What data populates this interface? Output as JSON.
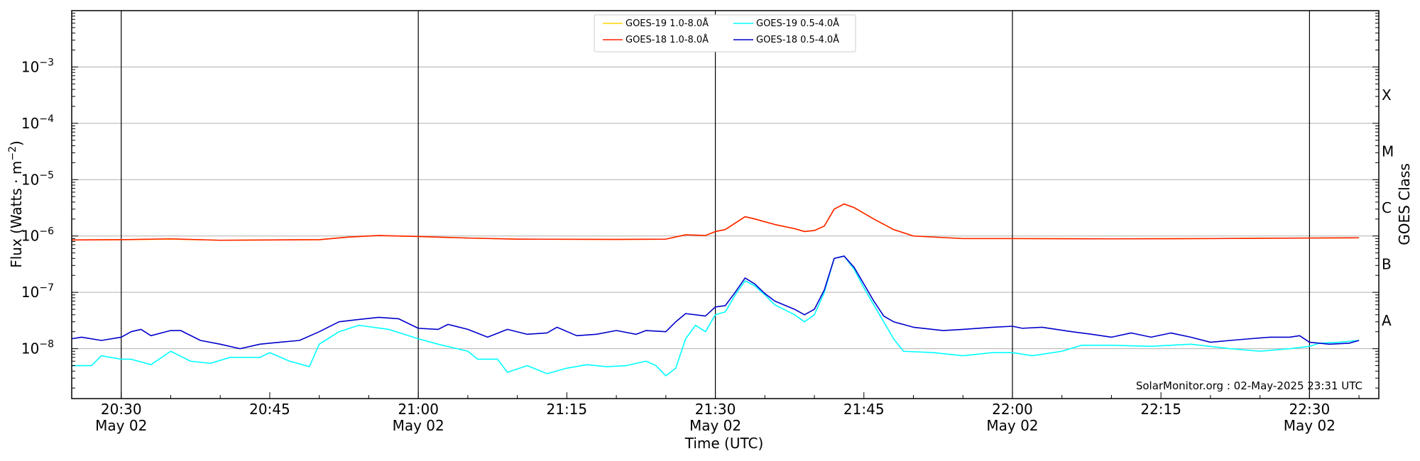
{
  "chart_data": {
    "type": "line",
    "title": "",
    "xlabel": "Time (UTC)",
    "ylabel": "Flux (Watts · m⁻²)",
    "ylabel_right": "GOES Class",
    "yscale": "log",
    "ylim": [
      1.3e-09,
      0.01
    ],
    "xlim": [
      "20:25",
      "22:37"
    ],
    "grid": "horizontal at decades",
    "legend_position": "top-center",
    "credit": "SolarMonitor.org : 02-May-2025 23:31 UTC",
    "x_ticks": [
      {
        "t": "20:30",
        "label": "20:30",
        "date": "May 02"
      },
      {
        "t": "20:45",
        "label": "20:45",
        "date": ""
      },
      {
        "t": "21:00",
        "label": "21:00",
        "date": "May 02"
      },
      {
        "t": "21:15",
        "label": "21:15",
        "date": ""
      },
      {
        "t": "21:30",
        "label": "21:30",
        "date": "May 02"
      },
      {
        "t": "21:45",
        "label": "21:45",
        "date": ""
      },
      {
        "t": "22:00",
        "label": "22:00",
        "date": "May 02"
      },
      {
        "t": "22:15",
        "label": "22:15",
        "date": ""
      },
      {
        "t": "22:30",
        "label": "22:30",
        "date": "May 02"
      }
    ],
    "y_ticks": [
      {
        "v": 1e-08,
        "base": "10",
        "exp": "−8"
      },
      {
        "v": 1e-07,
        "base": "10",
        "exp": "−7"
      },
      {
        "v": 1e-06,
        "base": "10",
        "exp": "−6"
      },
      {
        "v": 1e-05,
        "base": "10",
        "exp": "−5"
      },
      {
        "v": 0.0001,
        "base": "10",
        "exp": "−4"
      },
      {
        "v": 0.001,
        "base": "10",
        "exp": "−3"
      }
    ],
    "class_labels": [
      {
        "label": "X",
        "v": 0.000316
      },
      {
        "label": "M",
        "v": 3.16e-05
      },
      {
        "label": "C",
        "v": 3.16e-06
      },
      {
        "label": "B",
        "v": 3.16e-07
      },
      {
        "label": "A",
        "v": 3.16e-08
      }
    ],
    "vlines": [
      "20:30",
      "21:00",
      "21:30",
      "22:00",
      "22:30"
    ],
    "series": [
      {
        "name": "GOES-19 1.0-8.0Å",
        "color": "#FFD700",
        "points": [
          [
            "20:25",
            8.5e-07
          ],
          [
            "20:30",
            8.6e-07
          ],
          [
            "20:35",
            8.8e-07
          ],
          [
            "20:40",
            8.4e-07
          ],
          [
            "20:45",
            8.5e-07
          ],
          [
            "20:50",
            8.6e-07
          ],
          [
            "20:53",
            9.6e-07
          ],
          [
            "20:56",
            1.02e-06
          ],
          [
            "21:00",
            9.8e-07
          ],
          [
            "21:05",
            9.2e-07
          ],
          [
            "21:10",
            8.8e-07
          ],
          [
            "21:20",
            8.7e-07
          ],
          [
            "21:25",
            8.8e-07
          ],
          [
            "21:27",
            1.05e-06
          ],
          [
            "21:29",
            1.02e-06
          ],
          [
            "21:30",
            1.2e-06
          ],
          [
            "21:31",
            1.3e-06
          ],
          [
            "21:33",
            2.2e-06
          ],
          [
            "21:34",
            2e-06
          ],
          [
            "21:36",
            1.6e-06
          ],
          [
            "21:38",
            1.35e-06
          ],
          [
            "21:39",
            1.2e-06
          ],
          [
            "21:40",
            1.25e-06
          ],
          [
            "21:41",
            1.5e-06
          ],
          [
            "21:42",
            3e-06
          ],
          [
            "21:43",
            3.7e-06
          ],
          [
            "21:44",
            3.2e-06
          ],
          [
            "21:46",
            2e-06
          ],
          [
            "21:48",
            1.3e-06
          ],
          [
            "21:50",
            1e-06
          ],
          [
            "21:55",
            9e-07
          ],
          [
            "22:00",
            9e-07
          ],
          [
            "22:10",
            8.9e-07
          ],
          [
            "22:20",
            9e-07
          ],
          [
            "22:30",
            9.2e-07
          ],
          [
            "22:35",
            9.3e-07
          ]
        ]
      },
      {
        "name": "GOES-18 1.0-8.0Å",
        "color": "#FF2000",
        "points": [
          [
            "20:25",
            8.5e-07
          ],
          [
            "20:30",
            8.6e-07
          ],
          [
            "20:35",
            8.9e-07
          ],
          [
            "20:40",
            8.4e-07
          ],
          [
            "20:45",
            8.5e-07
          ],
          [
            "20:50",
            8.6e-07
          ],
          [
            "20:53",
            9.6e-07
          ],
          [
            "20:56",
            1.02e-06
          ],
          [
            "21:00",
            9.8e-07
          ],
          [
            "21:05",
            9.2e-07
          ],
          [
            "21:10",
            8.8e-07
          ],
          [
            "21:20",
            8.7e-07
          ],
          [
            "21:25",
            8.8e-07
          ],
          [
            "21:27",
            1.05e-06
          ],
          [
            "21:29",
            1.02e-06
          ],
          [
            "21:30",
            1.2e-06
          ],
          [
            "21:31",
            1.3e-06
          ],
          [
            "21:33",
            2.2e-06
          ],
          [
            "21:34",
            2e-06
          ],
          [
            "21:36",
            1.6e-06
          ],
          [
            "21:38",
            1.35e-06
          ],
          [
            "21:39",
            1.2e-06
          ],
          [
            "21:40",
            1.25e-06
          ],
          [
            "21:41",
            1.5e-06
          ],
          [
            "21:42",
            3e-06
          ],
          [
            "21:43",
            3.7e-06
          ],
          [
            "21:44",
            3.2e-06
          ],
          [
            "21:46",
            2e-06
          ],
          [
            "21:48",
            1.3e-06
          ],
          [
            "21:50",
            1e-06
          ],
          [
            "21:55",
            9e-07
          ],
          [
            "22:00",
            9e-07
          ],
          [
            "22:10",
            8.9e-07
          ],
          [
            "22:20",
            9e-07
          ],
          [
            "22:30",
            9.2e-07
          ],
          [
            "22:35",
            9.3e-07
          ]
        ]
      },
      {
        "name": "GOES-19 0.5-4.0Å",
        "color": "#00FFFF",
        "points": [
          [
            "20:25",
            5e-09
          ],
          [
            "20:27",
            5e-09
          ],
          [
            "20:28",
            7.5e-09
          ],
          [
            "20:30",
            6.5e-09
          ],
          [
            "20:31",
            6.5e-09
          ],
          [
            "20:33",
            5.2e-09
          ],
          [
            "20:35",
            9e-09
          ],
          [
            "20:37",
            6e-09
          ],
          [
            "20:39",
            5.5e-09
          ],
          [
            "20:41",
            7e-09
          ],
          [
            "20:44",
            7e-09
          ],
          [
            "20:45",
            8.5e-09
          ],
          [
            "20:47",
            6e-09
          ],
          [
            "20:49",
            4.8e-09
          ],
          [
            "20:50",
            1.2e-08
          ],
          [
            "20:52",
            2e-08
          ],
          [
            "20:54",
            2.6e-08
          ],
          [
            "20:57",
            2.2e-08
          ],
          [
            "21:00",
            1.5e-08
          ],
          [
            "21:02",
            1.2e-08
          ],
          [
            "21:05",
            9e-09
          ],
          [
            "21:06",
            6.5e-09
          ],
          [
            "21:08",
            6.5e-09
          ],
          [
            "21:09",
            3.8e-09
          ],
          [
            "21:11",
            5e-09
          ],
          [
            "21:13",
            3.6e-09
          ],
          [
            "21:15",
            4.5e-09
          ],
          [
            "21:17",
            5.2e-09
          ],
          [
            "21:19",
            4.8e-09
          ],
          [
            "21:21",
            5e-09
          ],
          [
            "21:23",
            6e-09
          ],
          [
            "21:24",
            5e-09
          ],
          [
            "21:25",
            3.3e-09
          ],
          [
            "21:26",
            4.5e-09
          ],
          [
            "21:27",
            1.5e-08
          ],
          [
            "21:28",
            2.6e-08
          ],
          [
            "21:29",
            2e-08
          ],
          [
            "21:30",
            4e-08
          ],
          [
            "21:31",
            4.5e-08
          ],
          [
            "21:32",
            9e-08
          ],
          [
            "21:33",
            1.6e-07
          ],
          [
            "21:34",
            1.3e-07
          ],
          [
            "21:35",
            9e-08
          ],
          [
            "21:36",
            6e-08
          ],
          [
            "21:38",
            4e-08
          ],
          [
            "21:39",
            3e-08
          ],
          [
            "21:40",
            4e-08
          ],
          [
            "21:41",
            1e-07
          ],
          [
            "21:42",
            4e-07
          ],
          [
            "21:43",
            4.4e-07
          ],
          [
            "21:44",
            2.6e-07
          ],
          [
            "21:45",
            1.2e-07
          ],
          [
            "21:46",
            6e-08
          ],
          [
            "21:47",
            3e-08
          ],
          [
            "21:48",
            1.5e-08
          ],
          [
            "21:49",
            9e-09
          ],
          [
            "21:52",
            8.5e-09
          ],
          [
            "21:55",
            7.5e-09
          ],
          [
            "21:58",
            8.5e-09
          ],
          [
            "22:00",
            8.5e-09
          ],
          [
            "22:02",
            7.5e-09
          ],
          [
            "22:05",
            9e-09
          ],
          [
            "22:07",
            1.15e-08
          ],
          [
            "22:10",
            1.15e-08
          ],
          [
            "22:14",
            1.1e-08
          ],
          [
            "22:18",
            1.2e-08
          ],
          [
            "22:22",
            1e-08
          ],
          [
            "22:25",
            9e-09
          ],
          [
            "22:28",
            1e-08
          ],
          [
            "22:30",
            1.1e-08
          ],
          [
            "22:31",
            1.25e-08
          ],
          [
            "22:33",
            1.3e-08
          ],
          [
            "22:35",
            1.4e-08
          ]
        ]
      },
      {
        "name": "GOES-18 0.5-4.0Å",
        "color": "#0000CC",
        "points": [
          [
            "20:25",
            1.5e-08
          ],
          [
            "20:26",
            1.6e-08
          ],
          [
            "20:28",
            1.4e-08
          ],
          [
            "20:30",
            1.6e-08
          ],
          [
            "20:31",
            2e-08
          ],
          [
            "20:32",
            2.2e-08
          ],
          [
            "20:33",
            1.7e-08
          ],
          [
            "20:35",
            2.1e-08
          ],
          [
            "20:36",
            2.1e-08
          ],
          [
            "20:38",
            1.4e-08
          ],
          [
            "20:40",
            1.2e-08
          ],
          [
            "20:42",
            1e-08
          ],
          [
            "20:44",
            1.2e-08
          ],
          [
            "20:46",
            1.3e-08
          ],
          [
            "20:48",
            1.4e-08
          ],
          [
            "20:50",
            2e-08
          ],
          [
            "20:52",
            3e-08
          ],
          [
            "20:54",
            3.3e-08
          ],
          [
            "20:56",
            3.6e-08
          ],
          [
            "20:58",
            3.4e-08
          ],
          [
            "21:00",
            2.3e-08
          ],
          [
            "21:02",
            2.2e-08
          ],
          [
            "21:03",
            2.7e-08
          ],
          [
            "21:05",
            2.2e-08
          ],
          [
            "21:07",
            1.6e-08
          ],
          [
            "21:09",
            2.2e-08
          ],
          [
            "21:11",
            1.8e-08
          ],
          [
            "21:13",
            1.9e-08
          ],
          [
            "21:14",
            2.4e-08
          ],
          [
            "21:16",
            1.7e-08
          ],
          [
            "21:18",
            1.8e-08
          ],
          [
            "21:20",
            2.1e-08
          ],
          [
            "21:22",
            1.8e-08
          ],
          [
            "21:23",
            2.1e-08
          ],
          [
            "21:25",
            2e-08
          ],
          [
            "21:26",
            3e-08
          ],
          [
            "21:27",
            4.2e-08
          ],
          [
            "21:29",
            3.8e-08
          ],
          [
            "21:30",
            5.5e-08
          ],
          [
            "21:31",
            5.8e-08
          ],
          [
            "21:32",
            1e-07
          ],
          [
            "21:33",
            1.8e-07
          ],
          [
            "21:34",
            1.4e-07
          ],
          [
            "21:35",
            9.5e-08
          ],
          [
            "21:36",
            7e-08
          ],
          [
            "21:38",
            5e-08
          ],
          [
            "21:39",
            4e-08
          ],
          [
            "21:40",
            5e-08
          ],
          [
            "21:41",
            1.1e-07
          ],
          [
            "21:42",
            4e-07
          ],
          [
            "21:43",
            4.4e-07
          ],
          [
            "21:44",
            2.8e-07
          ],
          [
            "21:45",
            1.4e-07
          ],
          [
            "21:46",
            7e-08
          ],
          [
            "21:47",
            3.8e-08
          ],
          [
            "21:48",
            3e-08
          ],
          [
            "21:50",
            2.4e-08
          ],
          [
            "21:53",
            2.1e-08
          ],
          [
            "21:55",
            2.2e-08
          ],
          [
            "21:58",
            2.4e-08
          ],
          [
            "22:00",
            2.5e-08
          ],
          [
            "22:01",
            2.3e-08
          ],
          [
            "22:03",
            2.4e-08
          ],
          [
            "22:06",
            2e-08
          ],
          [
            "22:08",
            1.8e-08
          ],
          [
            "22:10",
            1.6e-08
          ],
          [
            "22:12",
            1.9e-08
          ],
          [
            "22:14",
            1.6e-08
          ],
          [
            "22:16",
            1.9e-08
          ],
          [
            "22:18",
            1.6e-08
          ],
          [
            "22:20",
            1.3e-08
          ],
          [
            "22:22",
            1.4e-08
          ],
          [
            "22:24",
            1.5e-08
          ],
          [
            "22:26",
            1.6e-08
          ],
          [
            "22:28",
            1.6e-08
          ],
          [
            "22:29",
            1.7e-08
          ],
          [
            "22:30",
            1.3e-08
          ],
          [
            "22:32",
            1.2e-08
          ],
          [
            "22:34",
            1.25e-08
          ],
          [
            "22:35",
            1.4e-08
          ]
        ]
      }
    ]
  }
}
